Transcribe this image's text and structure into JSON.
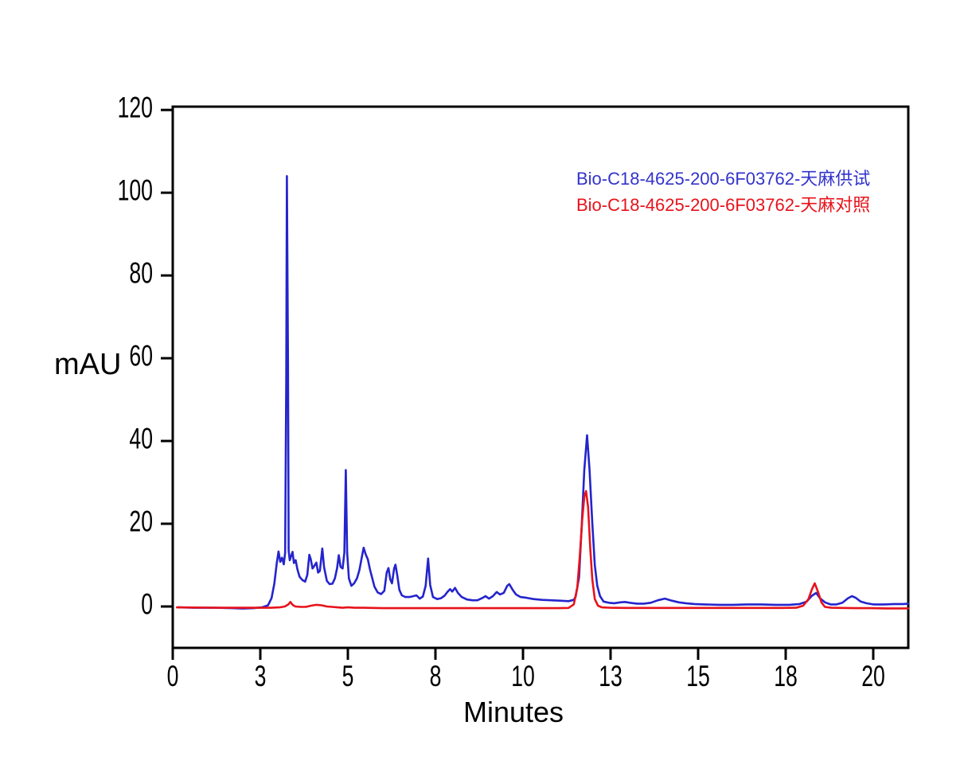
{
  "page": {
    "background": "#ffffff"
  },
  "axes": {
    "x_title": "Minutes",
    "y_title": "mAU"
  },
  "style": {
    "axis_color": "#000000",
    "blue_trace": "#2424cd",
    "red_trace": "#e8121a",
    "legend_blue": "#3333cc",
    "legend_red": "#e8121a"
  },
  "chart_data": {
    "type": "line",
    "title": "",
    "xlabel": "Minutes",
    "ylabel": "mAU",
    "x_unit": "minutes",
    "xlim": [
      0,
      21
    ],
    "ylim": [
      -10,
      120.8
    ],
    "grid": false,
    "legend_position": "upper-right-inside",
    "x_ticks": [
      {
        "value": 0,
        "label": "0"
      },
      {
        "value": 2.5,
        "label": "3"
      },
      {
        "value": 5,
        "label": "5"
      },
      {
        "value": 7.5,
        "label": "8"
      },
      {
        "value": 10,
        "label": "10"
      },
      {
        "value": 12.5,
        "label": "13"
      },
      {
        "value": 15,
        "label": "15"
      },
      {
        "value": 17.5,
        "label": "18"
      },
      {
        "value": 20,
        "label": "20"
      }
    ],
    "y_ticks": [
      {
        "value": 0,
        "label": "0"
      },
      {
        "value": 20,
        "label": "20"
      },
      {
        "value": 40,
        "label": "40"
      },
      {
        "value": 60,
        "label": "60"
      },
      {
        "value": 80,
        "label": "80"
      },
      {
        "value": 100,
        "label": "100"
      },
      {
        "value": 120,
        "label": "120"
      }
    ],
    "series": [
      {
        "name": "Bio-C18-4625-200-6F03762-天麻供试",
        "color": "#2424cd",
        "points": [
          [
            0.15,
            -0.2
          ],
          [
            0.6,
            -0.3
          ],
          [
            1.2,
            -0.3
          ],
          [
            1.7,
            -0.4
          ],
          [
            2.0,
            -0.5
          ],
          [
            2.3,
            -0.4
          ],
          [
            2.55,
            -0.2
          ],
          [
            2.72,
            0.3
          ],
          [
            2.82,
            2
          ],
          [
            2.9,
            5.5
          ],
          [
            2.97,
            10.5
          ],
          [
            3.02,
            13.3
          ],
          [
            3.07,
            10.8
          ],
          [
            3.12,
            11.8
          ],
          [
            3.17,
            10.2
          ],
          [
            3.21,
            13
          ],
          [
            3.24,
            55
          ],
          [
            3.26,
            104
          ],
          [
            3.29,
            58
          ],
          [
            3.31,
            13.5
          ],
          [
            3.34,
            11.2
          ],
          [
            3.38,
            12.2
          ],
          [
            3.42,
            13.2
          ],
          [
            3.46,
            10.5
          ],
          [
            3.51,
            11.2
          ],
          [
            3.56,
            9
          ],
          [
            3.62,
            7.2
          ],
          [
            3.7,
            6.4
          ],
          [
            3.78,
            6
          ],
          [
            3.84,
            7.6
          ],
          [
            3.9,
            12.5
          ],
          [
            3.94,
            11.4
          ],
          [
            3.99,
            9.2
          ],
          [
            4.04,
            9.8
          ],
          [
            4.1,
            10.6
          ],
          [
            4.15,
            8.2
          ],
          [
            4.2,
            8.6
          ],
          [
            4.27,
            14
          ],
          [
            4.32,
            9.5
          ],
          [
            4.4,
            6.2
          ],
          [
            4.48,
            5.4
          ],
          [
            4.56,
            5.5
          ],
          [
            4.63,
            6.8
          ],
          [
            4.69,
            9.2
          ],
          [
            4.74,
            12.4
          ],
          [
            4.79,
            9.6
          ],
          [
            4.85,
            9.2
          ],
          [
            4.9,
            13
          ],
          [
            4.94,
            33
          ],
          [
            4.98,
            13
          ],
          [
            5.03,
            6.8
          ],
          [
            5.1,
            5
          ],
          [
            5.18,
            5.6
          ],
          [
            5.26,
            6.8
          ],
          [
            5.33,
            8.8
          ],
          [
            5.4,
            12
          ],
          [
            5.45,
            14.2
          ],
          [
            5.51,
            12.6
          ],
          [
            5.57,
            11.4
          ],
          [
            5.63,
            9
          ],
          [
            5.69,
            7
          ],
          [
            5.76,
            4.8
          ],
          [
            5.85,
            3.4
          ],
          [
            5.95,
            3
          ],
          [
            6.04,
            3.8
          ],
          [
            6.11,
            8.2
          ],
          [
            6.16,
            9.3
          ],
          [
            6.21,
            6.6
          ],
          [
            6.26,
            5.6
          ],
          [
            6.32,
            9.2
          ],
          [
            6.36,
            10.1
          ],
          [
            6.41,
            7.6
          ],
          [
            6.47,
            4
          ],
          [
            6.54,
            2.7
          ],
          [
            6.64,
            2.3
          ],
          [
            6.76,
            2.3
          ],
          [
            6.87,
            2.5
          ],
          [
            6.96,
            2.7
          ],
          [
            7.05,
            1.9
          ],
          [
            7.14,
            2.4
          ],
          [
            7.22,
            5
          ],
          [
            7.29,
            11.6
          ],
          [
            7.35,
            5.2
          ],
          [
            7.43,
            2.3
          ],
          [
            7.55,
            1.8
          ],
          [
            7.66,
            2
          ],
          [
            7.76,
            2.6
          ],
          [
            7.85,
            3.6
          ],
          [
            7.92,
            4.2
          ],
          [
            7.98,
            3.6
          ],
          [
            8.06,
            4.5
          ],
          [
            8.14,
            3.3
          ],
          [
            8.25,
            2.3
          ],
          [
            8.4,
            1.7
          ],
          [
            8.56,
            1.5
          ],
          [
            8.7,
            1.5
          ],
          [
            8.85,
            2.1
          ],
          [
            8.93,
            2.5
          ],
          [
            9.03,
            1.9
          ],
          [
            9.14,
            2.5
          ],
          [
            9.25,
            3.5
          ],
          [
            9.34,
            2.9
          ],
          [
            9.45,
            3.3
          ],
          [
            9.55,
            5
          ],
          [
            9.61,
            5.4
          ],
          [
            9.7,
            4.1
          ],
          [
            9.8,
            2.9
          ],
          [
            9.93,
            2.3
          ],
          [
            10.1,
            2.1
          ],
          [
            10.3,
            1.8
          ],
          [
            10.55,
            1.6
          ],
          [
            10.8,
            1.5
          ],
          [
            11.05,
            1.4
          ],
          [
            11.3,
            1.3
          ],
          [
            11.45,
            1.6
          ],
          [
            11.5,
            2.3
          ],
          [
            11.6,
            7
          ],
          [
            11.68,
            20
          ],
          [
            11.75,
            33
          ],
          [
            11.83,
            41.4
          ],
          [
            11.9,
            33
          ],
          [
            11.98,
            20
          ],
          [
            12.05,
            10
          ],
          [
            12.12,
            5
          ],
          [
            12.2,
            2.5
          ],
          [
            12.3,
            1.2
          ],
          [
            12.45,
            0.9
          ],
          [
            12.6,
            0.8
          ],
          [
            12.78,
            1
          ],
          [
            12.91,
            1.1
          ],
          [
            13.05,
            0.9
          ],
          [
            13.25,
            0.7
          ],
          [
            13.45,
            0.7
          ],
          [
            13.65,
            0.9
          ],
          [
            13.85,
            1.5
          ],
          [
            14.05,
            1.9
          ],
          [
            14.25,
            1.4
          ],
          [
            14.45,
            1
          ],
          [
            14.65,
            0.8
          ],
          [
            14.9,
            0.6
          ],
          [
            15.2,
            0.5
          ],
          [
            15.6,
            0.4
          ],
          [
            16.0,
            0.4
          ],
          [
            16.4,
            0.5
          ],
          [
            16.8,
            0.5
          ],
          [
            17.2,
            0.4
          ],
          [
            17.6,
            0.4
          ],
          [
            17.9,
            0.6
          ],
          [
            18.1,
            1.2
          ],
          [
            18.25,
            2.6
          ],
          [
            18.37,
            3.3
          ],
          [
            18.48,
            2
          ],
          [
            18.62,
            1
          ],
          [
            18.78,
            0.5
          ],
          [
            18.95,
            0.5
          ],
          [
            19.12,
            0.9
          ],
          [
            19.28,
            2
          ],
          [
            19.39,
            2.5
          ],
          [
            19.5,
            2.1
          ],
          [
            19.64,
            1.2
          ],
          [
            19.8,
            0.8
          ],
          [
            20.0,
            0.5
          ],
          [
            20.3,
            0.5
          ],
          [
            20.6,
            0.6
          ],
          [
            20.85,
            0.6
          ],
          [
            21.0,
            0.7
          ]
        ]
      },
      {
        "name": "Bio-C18-4625-200-6F03762-天麻对照",
        "color": "#e8121a",
        "points": [
          [
            0.12,
            -0.2
          ],
          [
            0.7,
            -0.25
          ],
          [
            1.3,
            -0.3
          ],
          [
            1.9,
            -0.3
          ],
          [
            2.4,
            -0.3
          ],
          [
            2.8,
            -0.3
          ],
          [
            3.05,
            -0.2
          ],
          [
            3.2,
            0
          ],
          [
            3.3,
            0.5
          ],
          [
            3.36,
            1.1
          ],
          [
            3.42,
            0.4
          ],
          [
            3.5,
            0
          ],
          [
            3.65,
            -0.1
          ],
          [
            3.8,
            -0.1
          ],
          [
            3.95,
            0.2
          ],
          [
            4.1,
            0.4
          ],
          [
            4.25,
            0.3
          ],
          [
            4.4,
            0
          ],
          [
            4.55,
            -0.1
          ],
          [
            4.7,
            -0.2
          ],
          [
            4.85,
            -0.3
          ],
          [
            5.0,
            -0.2
          ],
          [
            5.2,
            -0.3
          ],
          [
            5.45,
            -0.3
          ],
          [
            5.7,
            -0.35
          ],
          [
            6.0,
            -0.4
          ],
          [
            6.4,
            -0.4
          ],
          [
            6.8,
            -0.4
          ],
          [
            7.2,
            -0.4
          ],
          [
            7.6,
            -0.4
          ],
          [
            8.0,
            -0.4
          ],
          [
            8.5,
            -0.4
          ],
          [
            9.0,
            -0.4
          ],
          [
            9.5,
            -0.4
          ],
          [
            10.0,
            -0.4
          ],
          [
            10.5,
            -0.4
          ],
          [
            11.0,
            -0.4
          ],
          [
            11.3,
            -0.35
          ],
          [
            11.45,
            0.5
          ],
          [
            11.55,
            4.5
          ],
          [
            11.62,
            12
          ],
          [
            11.69,
            21
          ],
          [
            11.75,
            26.5
          ],
          [
            11.8,
            27.9
          ],
          [
            11.86,
            24
          ],
          [
            11.92,
            14
          ],
          [
            11.98,
            6.5
          ],
          [
            12.05,
            1.8
          ],
          [
            12.14,
            0.2
          ],
          [
            12.25,
            -0.2
          ],
          [
            12.5,
            -0.3
          ],
          [
            12.9,
            -0.35
          ],
          [
            13.4,
            -0.35
          ],
          [
            13.9,
            -0.35
          ],
          [
            14.4,
            -0.35
          ],
          [
            14.9,
            -0.35
          ],
          [
            15.4,
            -0.35
          ],
          [
            15.9,
            -0.35
          ],
          [
            16.4,
            -0.35
          ],
          [
            16.9,
            -0.35
          ],
          [
            17.4,
            -0.35
          ],
          [
            17.8,
            -0.3
          ],
          [
            18.0,
            0.2
          ],
          [
            18.15,
            1.8
          ],
          [
            18.25,
            4.2
          ],
          [
            18.33,
            5.6
          ],
          [
            18.42,
            3.6
          ],
          [
            18.52,
            1
          ],
          [
            18.62,
            -0.1
          ],
          [
            18.8,
            -0.3
          ],
          [
            19.1,
            -0.35
          ],
          [
            19.5,
            -0.4
          ],
          [
            19.9,
            -0.4
          ],
          [
            20.4,
            -0.45
          ],
          [
            20.9,
            -0.45
          ],
          [
            21.0,
            -0.45
          ]
        ]
      }
    ]
  }
}
